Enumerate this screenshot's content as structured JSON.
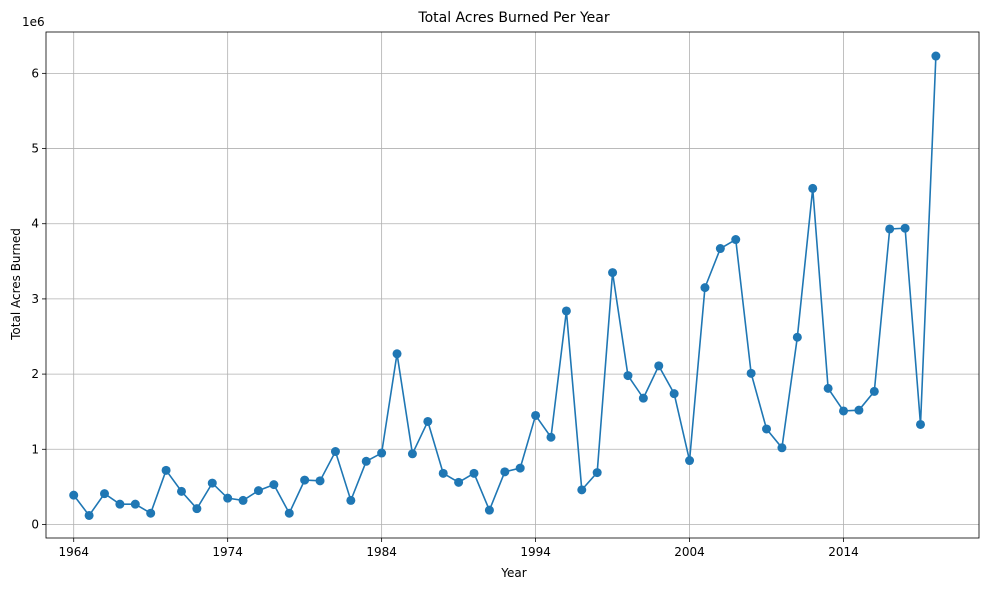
{
  "chart_data": {
    "type": "line",
    "title": "Total Acres Burned Per Year",
    "xlabel": "Year",
    "ylabel": "Total Acres Burned",
    "y_offset_text": "1e6",
    "x_ticks": [
      "1964",
      "1974",
      "1984",
      "1994",
      "2004",
      "2014"
    ],
    "y_ticks": [
      "0",
      "1",
      "2",
      "3",
      "4",
      "5",
      "6"
    ],
    "xlim": [
      1962.2,
      2022.8
    ],
    "ylim": [
      -0.18,
      6.55
    ],
    "grid": true,
    "marker": "circle",
    "color": "#1f77b4",
    "x": [
      1964,
      1965,
      1966,
      1967,
      1968,
      1969,
      1970,
      1971,
      1972,
      1973,
      1974,
      1975,
      1976,
      1977,
      1978,
      1979,
      1980,
      1981,
      1982,
      1983,
      1984,
      1985,
      1986,
      1987,
      1988,
      1989,
      1990,
      1991,
      1992,
      1993,
      1994,
      1995,
      1996,
      1997,
      1998,
      1999,
      2000,
      2001,
      2002,
      2003,
      2004,
      2005,
      2006,
      2007,
      2008,
      2009,
      2010,
      2011,
      2012,
      2013,
      2014,
      2015,
      2016,
      2017,
      2018,
      2019,
      2020
    ],
    "values": [
      0.39,
      0.12,
      0.41,
      0.27,
      0.27,
      0.15,
      0.72,
      0.44,
      0.21,
      0.55,
      0.35,
      0.32,
      0.45,
      0.53,
      0.15,
      0.59,
      0.58,
      0.97,
      0.32,
      0.84,
      0.95,
      2.27,
      0.94,
      1.37,
      0.68,
      0.56,
      0.68,
      0.19,
      0.7,
      0.75,
      1.45,
      1.16,
      2.84,
      0.46,
      0.69,
      3.35,
      1.98,
      1.68,
      2.11,
      1.74,
      0.85,
      3.15,
      3.67,
      3.79,
      2.01,
      1.27,
      1.02,
      2.49,
      4.47,
      1.81,
      1.51,
      1.52,
      1.77,
      3.93,
      3.94,
      1.33,
      6.23
    ]
  }
}
